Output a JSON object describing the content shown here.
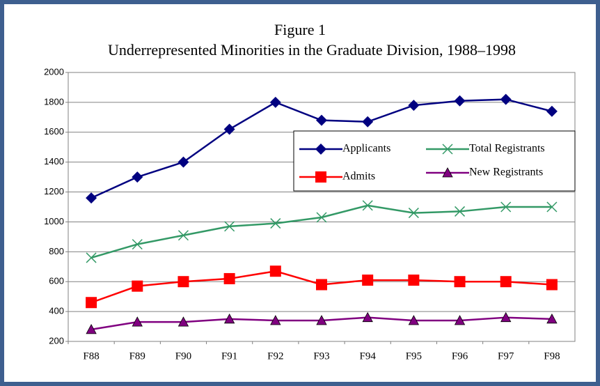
{
  "chart_data": {
    "type": "line",
    "title": "Figure 1",
    "subtitle": "Underrepresented Minorities in the Graduate Division, 1988–1998",
    "categories": [
      "F88",
      "F89",
      "F90",
      "F91",
      "F92",
      "F93",
      "F94",
      "F95",
      "F96",
      "F97",
      "F98"
    ],
    "series": [
      {
        "name": "Applicants",
        "color": "#000080",
        "marker": "diamond",
        "values": [
          1160,
          1300,
          1400,
          1620,
          1800,
          1680,
          1670,
          1780,
          1810,
          1820,
          1740
        ]
      },
      {
        "name": "Total Registrants",
        "color": "#339966",
        "marker": "x",
        "values": [
          760,
          850,
          910,
          970,
          990,
          1030,
          1110,
          1060,
          1070,
          1100,
          1100
        ]
      },
      {
        "name": "Admits",
        "color": "#ff0000",
        "marker": "square",
        "values": [
          460,
          570,
          600,
          620,
          670,
          580,
          610,
          610,
          600,
          600,
          580
        ]
      },
      {
        "name": "New Registrants",
        "color": "#800080",
        "marker": "triangle",
        "values": [
          280,
          330,
          330,
          350,
          340,
          340,
          360,
          340,
          340,
          360,
          350
        ]
      }
    ],
    "ylim": [
      200,
      2000
    ],
    "yticks": [
      200,
      400,
      600,
      800,
      1000,
      1200,
      1400,
      1600,
      1800,
      2000
    ],
    "grid": true,
    "legend": "center right"
  }
}
